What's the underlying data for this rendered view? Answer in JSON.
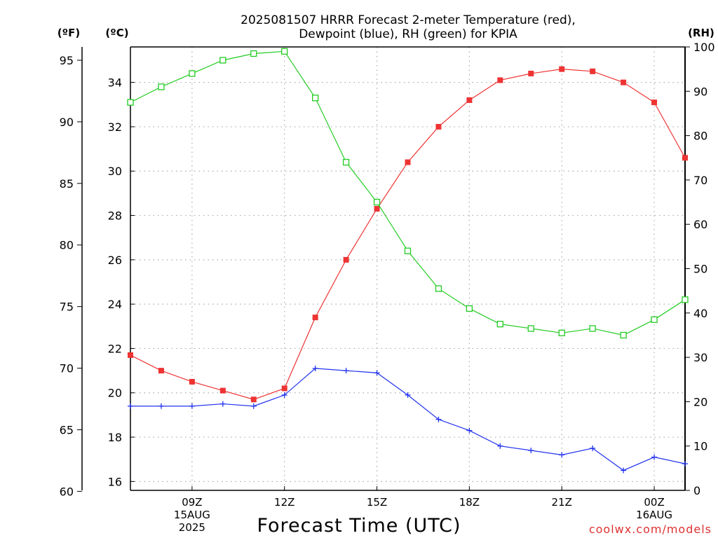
{
  "title_line1": "2025081507 HRRR Forecast 2-meter Temperature (red),",
  "title_line2": "Dewpoint (blue), RH (green) for KPIA",
  "unit_f": "(ºF)",
  "unit_c": "(ºC)",
  "unit_rh": "(RH)",
  "watermark": "coolwx.com/models",
  "colors": {
    "temperature": "#ee3333",
    "dewpoint": "#2233ee",
    "rh": "#22cc22",
    "grid": "#aaaaaa"
  },
  "chart_data": {
    "type": "line",
    "title": "2025081507 HRRR Forecast 2-meter Temperature (red), Dewpoint (blue), RH (green) for KPIA",
    "xlabel": "Forecast Time (UTC)",
    "x_ticks": [
      {
        "hour": 9,
        "lines": [
          "09Z",
          "15AUG",
          "2025"
        ]
      },
      {
        "hour": 12,
        "lines": [
          "12Z"
        ]
      },
      {
        "hour": 15,
        "lines": [
          "15Z"
        ]
      },
      {
        "hour": 18,
        "lines": [
          "18Z"
        ]
      },
      {
        "hour": 21,
        "lines": [
          "21Z"
        ]
      },
      {
        "hour": 24,
        "lines": [
          "00Z",
          "16AUG"
        ]
      }
    ],
    "xlim": [
      7,
      25
    ],
    "x": [
      7,
      8,
      9,
      10,
      11,
      12,
      13,
      14,
      15,
      16,
      17,
      18,
      19,
      20,
      21,
      22,
      23,
      24,
      25
    ],
    "axes": {
      "celsius": {
        "ylim": [
          15.6,
          35.6
        ],
        "ticks": [
          16,
          18,
          20,
          22,
          24,
          26,
          28,
          30,
          32,
          34
        ]
      },
      "fahrenheit": {
        "ticks": [
          60,
          65,
          70,
          75,
          80,
          85,
          90,
          95
        ]
      },
      "rh": {
        "ylim": [
          0,
          100
        ],
        "ticks": [
          0,
          10,
          20,
          30,
          40,
          50,
          60,
          70,
          80,
          90,
          100
        ]
      }
    },
    "grid": true,
    "series": [
      {
        "name": "Temperature",
        "axis": "celsius",
        "marker": "filled-square",
        "values": [
          21.7,
          21.0,
          20.5,
          20.1,
          19.7,
          20.2,
          23.4,
          26.0,
          28.3,
          30.4,
          32.0,
          33.2,
          34.1,
          34.4,
          34.6,
          34.5,
          34.0,
          33.1,
          30.6
        ]
      },
      {
        "name": "Dewpoint",
        "axis": "celsius",
        "marker": "plus",
        "values": [
          19.4,
          19.4,
          19.4,
          19.5,
          19.4,
          19.9,
          21.1,
          21.0,
          20.9,
          19.9,
          18.8,
          18.3,
          17.6,
          17.4,
          17.2,
          17.5,
          16.5,
          17.1,
          16.8
        ]
      },
      {
        "name": "RH",
        "axis": "rh",
        "marker": "open-square",
        "values": [
          87.5,
          91,
          94,
          97,
          98.5,
          99,
          88.5,
          74,
          65,
          54,
          45.5,
          41,
          37.5,
          36.5,
          35.5,
          36.5,
          35,
          38.5,
          43
        ]
      }
    ]
  }
}
